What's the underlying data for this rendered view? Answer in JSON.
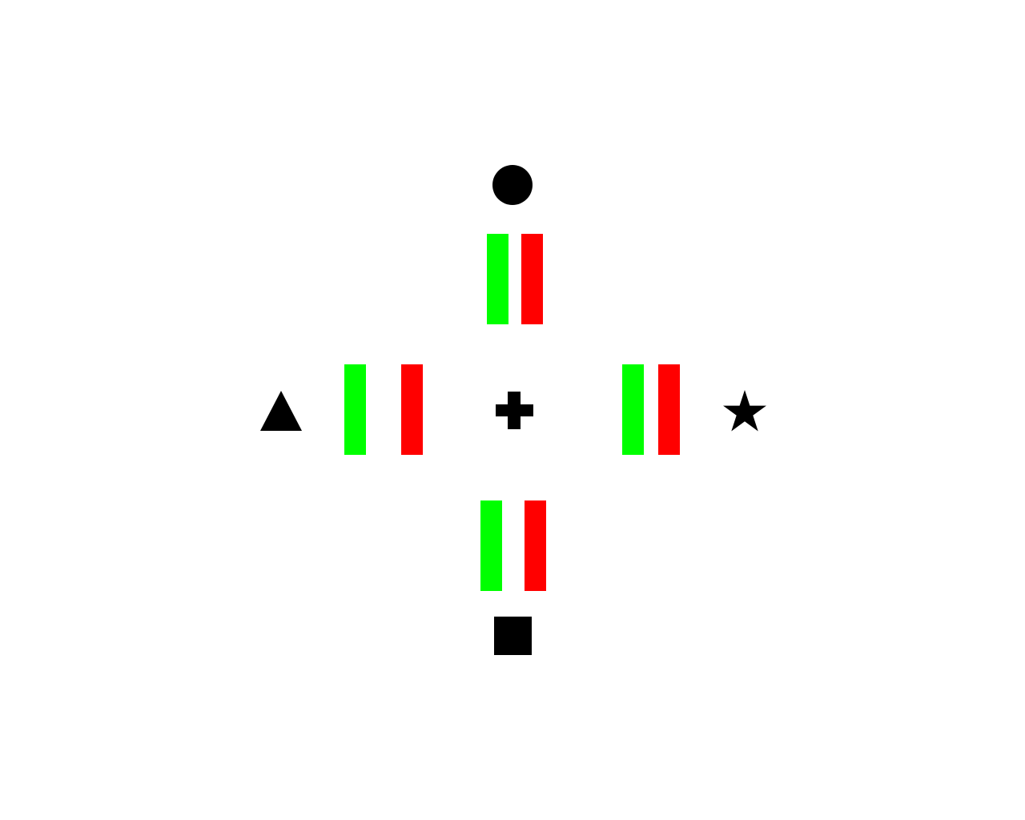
{
  "colors": {
    "background": "#ffffff",
    "green_bar": "#00ff00",
    "red_bar": "#ff0000",
    "symbol": "#000000"
  },
  "icons": {
    "top": "circle-icon",
    "bottom": "square-icon",
    "left": "triangle-icon",
    "right": "star-icon",
    "center": "fixation-cross-icon"
  },
  "bar_pairs": [
    "top",
    "left",
    "right",
    "bottom"
  ]
}
